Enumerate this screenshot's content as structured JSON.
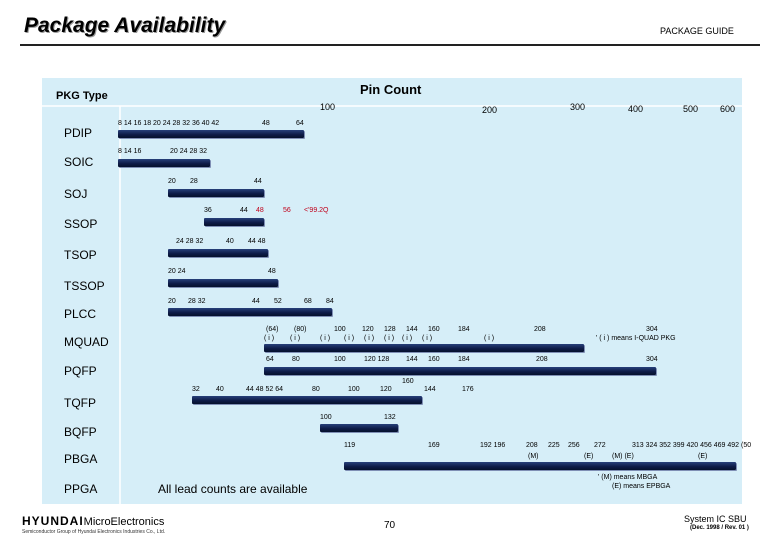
{
  "header": {
    "title": "Package Availability",
    "guide": "PACKAGE GUIDE"
  },
  "chart_data": {
    "type": "table",
    "title": "Pin Count",
    "row_header": "PKG Type",
    "axis_labels": [
      "100",
      "200",
      "300",
      "400",
      "500",
      "600"
    ],
    "rows": [
      {
        "package": "PDIP",
        "pins": [
          "8 14 16 18 20 24 28 32 36 40 42",
          "48",
          "64"
        ]
      },
      {
        "package": "SOIC",
        "pins": [
          "8 14 16",
          "20 24 28 32"
        ]
      },
      {
        "package": "SOJ",
        "pins": [
          "20",
          "28",
          "44"
        ]
      },
      {
        "package": "SSOP",
        "pins": [
          "36",
          "44",
          "48",
          "56",
          "<'99.2Q"
        ]
      },
      {
        "package": "TSOP",
        "pins": [
          "24 28 32",
          "40",
          "44 48"
        ]
      },
      {
        "package": "TSSOP",
        "pins": [
          "20 24",
          "48"
        ]
      },
      {
        "package": "PLCC",
        "pins": [
          "20",
          "28 32",
          "44",
          "52",
          "68",
          "84"
        ]
      },
      {
        "package": "MQUAD",
        "pins": [
          "(64)",
          "(80)",
          "100",
          "120",
          "128",
          "144",
          "160",
          "184",
          "208",
          "304"
        ],
        "sub": [
          "( i )",
          "( i )",
          "( i )",
          "( i )",
          "( i )",
          "( i )",
          "( i )",
          "( i )",
          "( i )"
        ]
      },
      {
        "package": "PQFP",
        "pins": [
          "64",
          "80",
          "100",
          "120 128",
          "144",
          "160",
          "184",
          "208",
          "304"
        ]
      },
      {
        "package": "TQFP",
        "pins": [
          "32",
          "40",
          "44 48 52 64",
          "80",
          "100",
          "120",
          "160",
          "144",
          "176"
        ]
      },
      {
        "package": "BQFP",
        "pins": [
          "100",
          "132"
        ]
      },
      {
        "package": "PBGA",
        "pins": [
          "119",
          "169",
          "192 196",
          "208",
          "225",
          "256",
          "272",
          "313 324 352 399 420 456 469 492 (50"
        ],
        "sub": [
          "(M)",
          "(E)",
          "(M) (E)",
          "(E)"
        ]
      },
      {
        "package": "PPGA",
        "pins": [
          "All lead counts are available"
        ]
      }
    ],
    "notes": [
      "' ( i ) means I-QUAD PKG",
      "' (M) means MBGA",
      "(E) means EPBGA"
    ]
  },
  "footer": {
    "logo_main": "HYUNDAI",
    "logo_sub": "MicroElectronics",
    "logo_caption": "Semiconductor Group of Hyundai Electronics Industries Co., Ltd.",
    "page_number": "70",
    "division": "System IC SBU",
    "date": "(Dec. 1998 / Rev. 01 )"
  }
}
